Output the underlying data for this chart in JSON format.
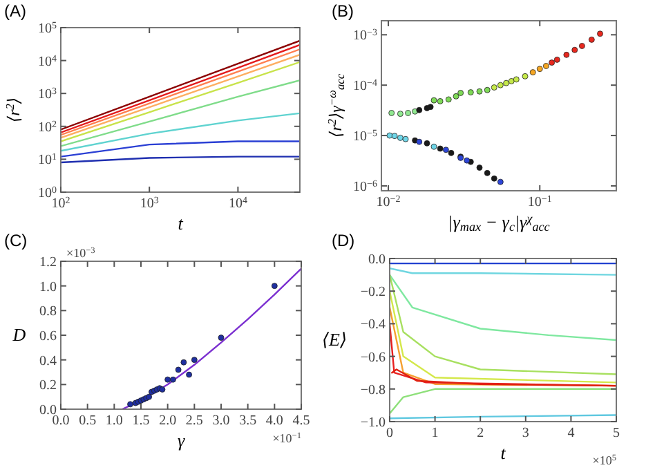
{
  "chart_data": [
    {
      "type": "line",
      "title": "(A)",
      "xlabel": "t",
      "ylabel": "⟨r$^{2}$⟩",
      "log": "xy",
      "xlim": [
        100,
        50000
      ],
      "ylim": [
        1,
        100000
      ],
      "xticks": [
        {
          "value": 100,
          "label": "10$^{2}$"
        },
        {
          "value": 1000,
          "label": "10$^{3}$"
        },
        {
          "value": 10000,
          "label": "10$^{4}$"
        }
      ],
      "yticks": [
        {
          "value": 1,
          "label": "10$^{0}$"
        },
        {
          "value": 10,
          "label": "10$^{1}$"
        },
        {
          "value": 100,
          "label": "10$^{2}$"
        },
        {
          "value": 1000,
          "label": "10$^{3}$"
        },
        {
          "value": 10000,
          "label": "10$^{4}$"
        },
        {
          "value": 100000,
          "label": "10$^{5}$"
        }
      ],
      "x": [
        100,
        1000,
        10000,
        50000
      ],
      "series": [
        {
          "color": "#8b0000",
          "values": [
            80,
            800,
            8000,
            40000
          ]
        },
        {
          "color": "#e41a1c",
          "values": [
            65,
            620,
            6000,
            30000
          ]
        },
        {
          "color": "#ff7f50",
          "values": [
            55,
            500,
            4600,
            22000
          ]
        },
        {
          "color": "#fdae61",
          "values": [
            45,
            380,
            3300,
            15000
          ]
        },
        {
          "color": "#c8e34a",
          "values": [
            35,
            270,
            2100,
            9000
          ]
        },
        {
          "color": "#7fdc8a",
          "values": [
            25,
            140,
            800,
            2500
          ]
        },
        {
          "color": "#5fd3d0",
          "values": [
            18,
            60,
            150,
            250
          ]
        },
        {
          "color": "#2a3fd4",
          "values": [
            12,
            28,
            35,
            35
          ]
        },
        {
          "color": "#1f2fb0",
          "values": [
            8,
            11,
            12,
            12
          ]
        }
      ]
    },
    {
      "type": "scatter",
      "title": "(B)",
      "xlabel": "|γ$_{max}$ − γ$_{c}$|γ$^{χ}$$_{acc}$",
      "ylabel": "⟨r$^{2}$⟩γ$^{−ω}$$_{acc}$",
      "log": "xy",
      "marker": "circle",
      "xlim": [
        0.009,
        0.32
      ],
      "ylim": [
        8e-07,
        0.0019
      ],
      "xticks": [
        {
          "value": 0.01,
          "label": "10$^{−2}$"
        },
        {
          "value": 0.1,
          "label": "10$^{−1}$"
        }
      ],
      "yticks": [
        {
          "value": 1e-06,
          "label": "10$^{−6}$"
        },
        {
          "value": 1e-05,
          "label": "10$^{−5}$"
        },
        {
          "value": 0.0001,
          "label": "10$^{−4}$"
        },
        {
          "value": 0.001,
          "label": "10$^{−3}$"
        }
      ],
      "series": [
        {
          "color": "#90e890",
          "x": [
            0.0105,
            0.012,
            0.0135,
            0.015
          ],
          "values": [
            2.8e-05,
            2.7e-05,
            2.8e-05,
            3e-05
          ]
        },
        {
          "color": "#1a1a1a",
          "x": [
            0.016,
            0.018,
            0.019,
            0.015,
            0.018,
            0.022,
            0.026,
            0.03,
            0.035,
            0.04,
            0.045,
            0.05
          ],
          "values": [
            3.2e-05,
            3.5e-05,
            3.7e-05,
            8e-06,
            7e-06,
            5.5e-06,
            4.5e-06,
            3.8e-06,
            3e-06,
            2.3e-06,
            1.8e-06,
            1.4e-06
          ]
        },
        {
          "color": "#7ed957",
          "x": [
            0.02,
            0.022,
            0.025,
            0.028,
            0.03,
            0.035,
            0.04,
            0.045
          ],
          "values": [
            5e-05,
            4.8e-05,
            5.2e-05,
            6e-05,
            7e-05,
            7.2e-05,
            7.5e-05,
            8e-05
          ]
        },
        {
          "color": "#c5e84a",
          "x": [
            0.05,
            0.055,
            0.06,
            0.065,
            0.07,
            0.08
          ],
          "values": [
            9e-05,
            0.0001,
            0.00011,
            0.00012,
            0.00013,
            0.00015
          ]
        },
        {
          "color": "#f5a623",
          "x": [
            0.09,
            0.1,
            0.11
          ],
          "values": [
            0.00018,
            0.00021,
            0.00024
          ]
        },
        {
          "color": "#e8281e",
          "x": [
            0.12,
            0.13,
            0.15,
            0.17,
            0.19,
            0.22,
            0.25
          ],
          "values": [
            0.00028,
            0.00032,
            0.0004,
            0.0005,
            0.0006,
            0.0008,
            0.00105
          ]
        },
        {
          "color": "#6fd6e8",
          "x": [
            0.0102,
            0.011,
            0.012,
            0.013,
            0.02
          ],
          "values": [
            1e-05,
            9.8e-06,
            9e-06,
            8.5e-06,
            6e-06
          ]
        },
        {
          "color": "#2d45d8",
          "x": [
            0.016,
            0.024,
            0.03,
            0.033,
            0.055
          ],
          "values": [
            7.5e-06,
            5.2e-06,
            3.6e-06,
            3.2e-06,
            1.2e-06
          ]
        }
      ]
    },
    {
      "type": "scatter",
      "title": "(C)",
      "xlabel": "γ",
      "ylabel": "D",
      "marker": "circle",
      "xlim": [
        0,
        4.5
      ],
      "ylim": [
        0,
        1.2
      ],
      "xticks": [
        {
          "value": 0,
          "label": "0.0"
        },
        0.5,
        {
          "value": 1,
          "label": "1.0"
        },
        1.5,
        {
          "value": 2,
          "label": "2.0"
        },
        2.5,
        {
          "value": 3,
          "label": "3.0"
        },
        3.5,
        {
          "value": 4,
          "label": "4.0"
        },
        4.5
      ],
      "yticks": [
        {
          "value": 0,
          "label": "0.0"
        },
        0.2,
        0.4,
        0.6,
        0.8,
        {
          "value": 1,
          "label": "1.0"
        },
        1.2
      ],
      "annotations": [
        "×10$^{−3}$",
        "×10$^{−1}$"
      ],
      "series": [
        {
          "color": "#1f2fa0",
          "x": [
            1.3,
            1.4,
            1.45,
            1.5,
            1.55,
            1.6,
            1.65,
            1.7,
            1.75,
            1.8,
            1.85,
            1.9,
            2.0,
            2.1,
            2.2,
            2.3,
            2.4,
            2.5,
            3.0,
            4.0
          ],
          "values": [
            0.04,
            0.05,
            0.06,
            0.07,
            0.08,
            0.09,
            0.1,
            0.14,
            0.15,
            0.16,
            0.17,
            0.16,
            0.24,
            0.24,
            0.32,
            0.38,
            0.28,
            0.4,
            0.58,
            1.0
          ]
        },
        {
          "type": "line",
          "marker": "none",
          "color": "#7b2fd0",
          "x": [
            1.15,
            1.5,
            2,
            2.5,
            3,
            3.5,
            4,
            4.5
          ],
          "values": [
            0,
            0.07,
            0.2,
            0.36,
            0.54,
            0.73,
            0.93,
            1.14
          ]
        }
      ]
    },
    {
      "type": "line",
      "title": "(D)",
      "xlabel": "t",
      "ylabel": "⟨E⟩",
      "xlim": [
        0,
        5
      ],
      "ylim": [
        -1,
        0
      ],
      "xticks": [
        0,
        1,
        2,
        3,
        4,
        5
      ],
      "yticks": [
        {
          "value": -1,
          "label": "−1.0"
        },
        {
          "value": -0.8,
          "label": "−0.8"
        },
        {
          "value": -0.6,
          "label": "−0.6"
        },
        {
          "value": -0.4,
          "label": "−0.4"
        },
        {
          "value": -0.2,
          "label": "−0.2"
        },
        {
          "value": 0,
          "label": "0.0"
        }
      ],
      "annotations": [
        "×10$^{5}$"
      ],
      "series": [
        {
          "color": "#1f3fd0",
          "x": [
            0,
            5
          ],
          "values": [
            -0.03,
            -0.03
          ]
        },
        {
          "color": "#6fd6e0",
          "x": [
            0,
            0.5,
            2,
            5
          ],
          "values": [
            -0.06,
            -0.09,
            -0.09,
            -0.1
          ]
        },
        {
          "color": "#7fe8a0",
          "x": [
            0,
            0.5,
            2,
            3.5,
            5
          ],
          "values": [
            -0.1,
            -0.3,
            -0.43,
            -0.47,
            -0.5
          ]
        },
        {
          "color": "#a8e060",
          "x": [
            0,
            0.3,
            1,
            2,
            5
          ],
          "values": [
            -0.1,
            -0.45,
            -0.6,
            -0.68,
            -0.71
          ]
        },
        {
          "color": "#d4e84a",
          "x": [
            0,
            0.3,
            1,
            5
          ],
          "values": [
            -0.2,
            -0.6,
            -0.73,
            -0.76
          ]
        },
        {
          "color": "#8ee07a",
          "x": [
            0,
            0.3,
            1,
            5
          ],
          "values": [
            -0.95,
            -0.85,
            -0.8,
            -0.8
          ]
        },
        {
          "color": "#f5a030",
          "x": [
            0,
            0.3,
            1,
            5
          ],
          "values": [
            -0.3,
            -0.7,
            -0.77,
            -0.78
          ]
        },
        {
          "color": "#e82020",
          "x": [
            0,
            0.1,
            0.8,
            5
          ],
          "values": [
            -0.4,
            -0.7,
            -0.76,
            -0.78
          ]
        },
        {
          "color": "#e02010",
          "x": [
            0.05,
            0.15,
            0.6,
            2,
            5
          ],
          "values": [
            -0.7,
            -0.68,
            -0.75,
            -0.77,
            -0.78
          ]
        },
        {
          "color": "#5fc8e0",
          "x": [
            0,
            2,
            5
          ],
          "values": [
            -0.98,
            -0.97,
            -0.96
          ]
        }
      ]
    }
  ]
}
